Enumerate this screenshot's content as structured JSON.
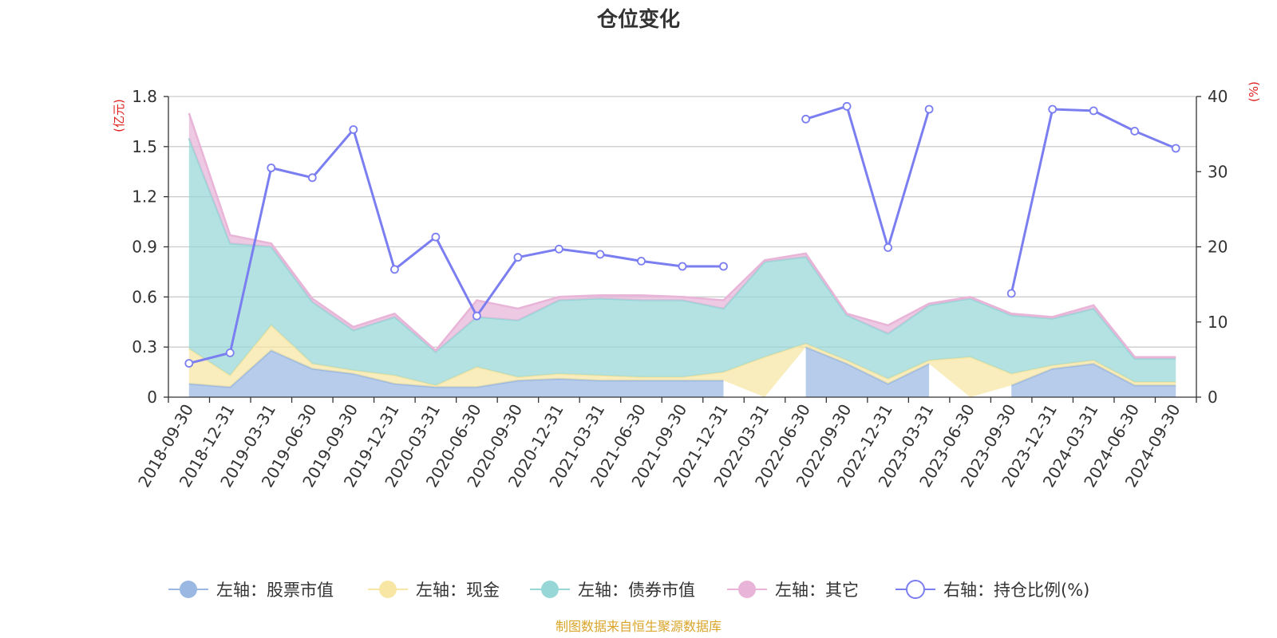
{
  "chart_data": {
    "type": "area",
    "title": "仓位变化",
    "left_unit": "(亿元)",
    "right_unit": "(%)",
    "ylim_left": [
      0,
      1.8
    ],
    "ylim_right": [
      0,
      40
    ],
    "left_ticks": [
      "0",
      "0.3",
      "0.6",
      "0.9",
      "1.2",
      "1.5",
      "1.8"
    ],
    "right_ticks": [
      "0",
      "10",
      "20",
      "30",
      "40"
    ],
    "categories": [
      "2018-09-30",
      "2018-12-31",
      "2019-03-31",
      "2019-06-30",
      "2019-09-30",
      "2019-12-31",
      "2020-03-31",
      "2020-06-30",
      "2020-09-30",
      "2020-12-31",
      "2021-03-31",
      "2021-06-30",
      "2021-09-30",
      "2021-12-31",
      "2022-03-31",
      "2022-06-30",
      "2022-09-30",
      "2022-12-31",
      "2023-03-31",
      "2023-06-30",
      "2023-09-30",
      "2023-12-31",
      "2024-03-31",
      "2024-06-30",
      "2024-09-30"
    ],
    "stacked_series": [
      {
        "name": "左轴：股票市值",
        "color": "#9ab8e2",
        "values": [
          0.08,
          0.06,
          0.28,
          0.17,
          0.14,
          0.08,
          0.06,
          0.06,
          0.1,
          0.11,
          0.1,
          0.1,
          0.1,
          0.1,
          null,
          0.3,
          0.2,
          0.08,
          0.2,
          null,
          0.07,
          0.17,
          0.2,
          0.07,
          0.07
        ]
      },
      {
        "name": "左轴：现金",
        "color": "#f7e6a4",
        "values": [
          0.21,
          0.07,
          0.15,
          0.03,
          0.02,
          0.05,
          0.01,
          0.12,
          0.02,
          0.03,
          0.03,
          0.02,
          0.02,
          0.05,
          0.24,
          0.02,
          0.02,
          0.03,
          0.02,
          0.24,
          0.07,
          0.02,
          0.02,
          0.02,
          0.02
        ]
      },
      {
        "name": "左轴：债券市值",
        "color": "#97d7d7",
        "values": [
          1.26,
          0.79,
          0.47,
          0.37,
          0.24,
          0.35,
          0.2,
          0.3,
          0.34,
          0.44,
          0.46,
          0.46,
          0.46,
          0.38,
          0.57,
          0.52,
          0.27,
          0.27,
          0.33,
          0.35,
          0.35,
          0.28,
          0.31,
          0.14,
          0.14
        ]
      },
      {
        "name": "左轴：其它",
        "color": "#e8b4d8",
        "values": [
          0.15,
          0.05,
          0.02,
          0.02,
          0.02,
          0.02,
          0.01,
          0.1,
          0.07,
          0.02,
          0.02,
          0.03,
          0.02,
          0.05,
          0.01,
          0.02,
          0.01,
          0.05,
          0.01,
          0.01,
          0.01,
          0.01,
          0.02,
          0.01,
          0.01
        ]
      }
    ],
    "line_series": {
      "name": "右轴：持仓比例(%)",
      "color": "#7b7ef0",
      "values": [
        4.5,
        5.9,
        30.5,
        29.2,
        35.6,
        17.0,
        21.3,
        10.8,
        18.6,
        19.7,
        19.0,
        18.1,
        17.4,
        17.4,
        null,
        37.0,
        38.7,
        19.9,
        38.3,
        null,
        13.8,
        38.3,
        38.1,
        35.4,
        33.1
      ]
    },
    "grid": true,
    "legend_position": "bottom-center",
    "source_text": "制图数据来自恒生聚源数据库",
    "colors": {
      "axis_unit": "#e02020",
      "source": "#d9a52a",
      "grid": "#cccccc"
    }
  }
}
